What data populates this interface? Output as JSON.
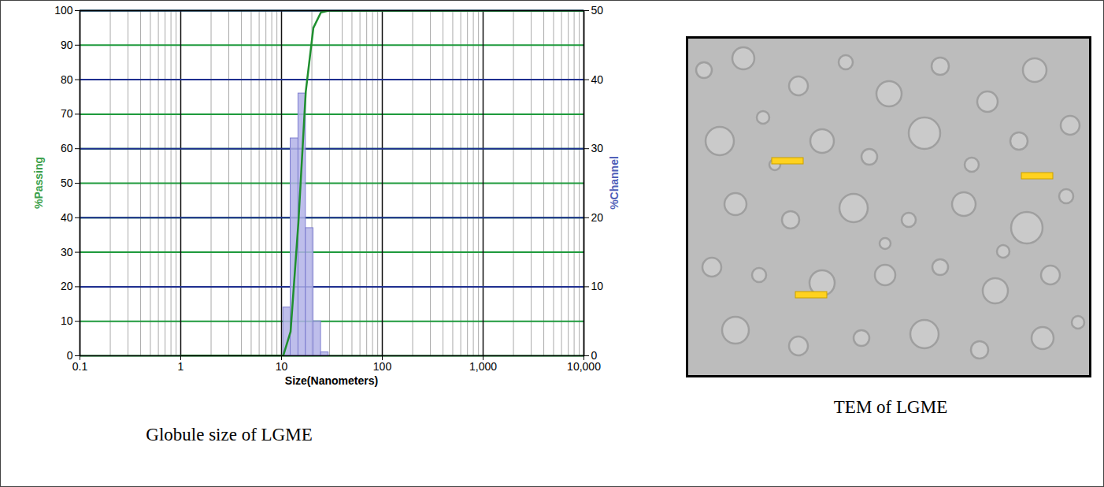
{
  "chart_data": {
    "type": "histogram",
    "title": "Globule size of LGME",
    "x_label": "Size(Nanometers)",
    "y_label": "%Passing",
    "y2_label": "%Channel",
    "log": "x",
    "grid": true,
    "xlim": [
      0.1,
      10000
    ],
    "xticks": [
      0.1,
      1,
      10,
      100,
      {
        "value": 1000,
        "label": "1,000"
      },
      {
        "value": 10000,
        "label": "10,000"
      }
    ],
    "ylim": [
      0,
      100
    ],
    "yticks": [
      0,
      10,
      20,
      30,
      40,
      50,
      60,
      70,
      80,
      90,
      100
    ],
    "y2lim": [
      0,
      50
    ],
    "y2ticks": [
      0,
      10,
      20,
      30,
      40,
      50
    ],
    "series": [
      {
        "type": "bar",
        "axis": "y2",
        "color": "#b3b3e8",
        "bins": [
          10.4,
          12.3,
          14.7,
          17.4,
          20.7,
          24.6,
          29.3
        ],
        "values": [
          7,
          31.5,
          38,
          18.5,
          5,
          0.5
        ]
      },
      {
        "type": "line",
        "color": "#1f8f2f",
        "x": [
          1,
          10.4,
          12.3,
          14.7,
          17.4,
          20.7,
          24.6,
          29.3,
          10000
        ],
        "values": [
          0,
          0,
          7,
          38.5,
          76.5,
          95,
          99.5,
          100,
          100
        ]
      }
    ]
  },
  "image": {
    "title": "TEM of LGME"
  }
}
